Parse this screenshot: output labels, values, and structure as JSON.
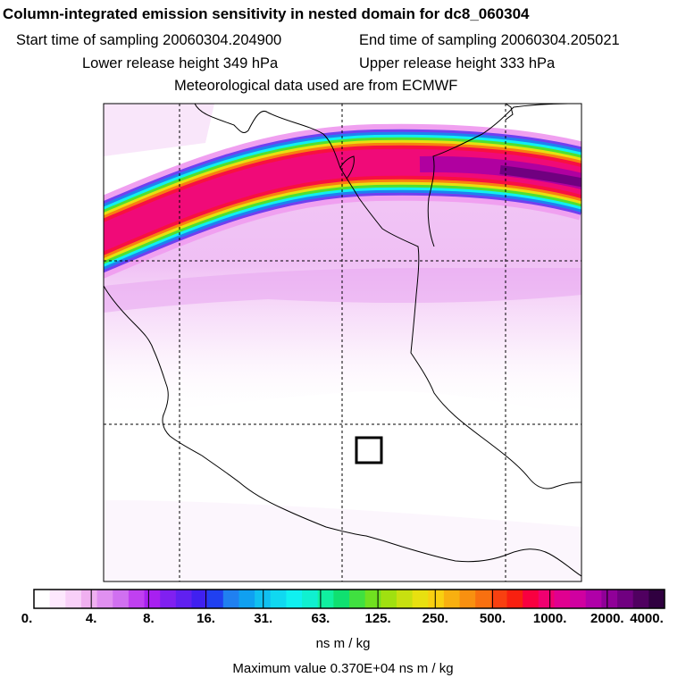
{
  "header": {
    "title": "Column-integrated emission sensitivity in nested domain for dc8_060304",
    "start_label": "Start time of sampling 20060304.204900",
    "end_label": "End time of sampling 20060304.205021",
    "lower_label": "Lower release height  349 hPa",
    "upper_label": "Upper release height  333 hPa",
    "met_label": "Meteorological data used are from ECMWF"
  },
  "colorbar": {
    "ticks": [
      "0.",
      "4.",
      "8.",
      "16.",
      "31.",
      "63.",
      "125.",
      "250.",
      "500.",
      "1000.",
      "2000.",
      "4000."
    ],
    "colors": [
      "#ffffff",
      "#fde8fd",
      "#f8d0f8",
      "#f0b0f0",
      "#e090f0",
      "#d070f0",
      "#c040f0",
      "#a820f0",
      "#8020f0",
      "#6020f0",
      "#4020f0",
      "#2040f0",
      "#2080f0",
      "#10a0f0",
      "#10c0f0",
      "#10d8f0",
      "#10f0f0",
      "#10f0d0",
      "#10f0a0",
      "#10e070",
      "#40e040",
      "#70e020",
      "#a0e010",
      "#c8e010",
      "#e8e010",
      "#f8d010",
      "#f8b010",
      "#f89010",
      "#f87010",
      "#f84010",
      "#f82010",
      "#f80040",
      "#f00070",
      "#e00090",
      "#d000a0",
      "#b000a8",
      "#900098",
      "#700080",
      "#500060",
      "#300040"
    ],
    "units": "ns m / kg",
    "max_label": "Maximum value  0.370E+04 ns m / kg"
  }
}
